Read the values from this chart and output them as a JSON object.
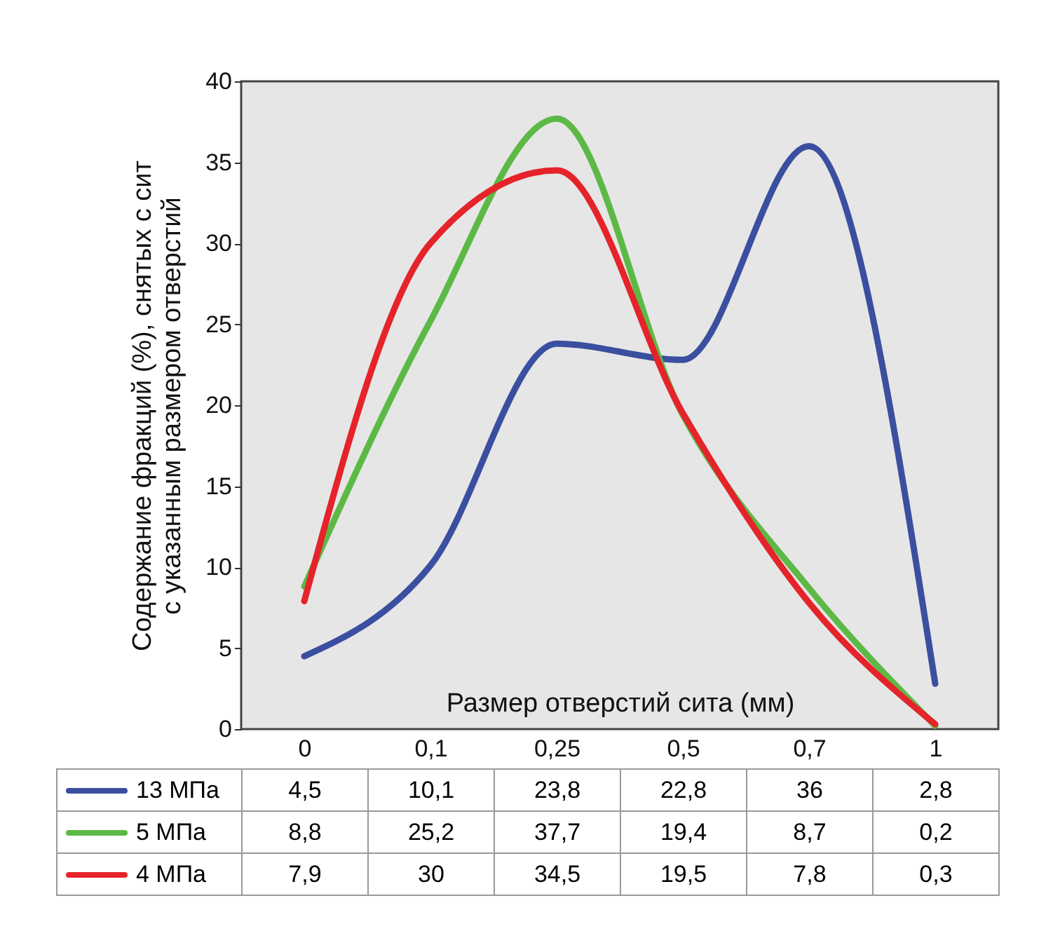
{
  "chart_data": {
    "type": "line",
    "xlabel": "Размер отверстий сита (мм)",
    "ylabel": "Содержание фракций (%), снятых с  сит\nс указанным размером отверстий",
    "categories": [
      "0",
      "0,1",
      "0,25",
      "0,5",
      "0,7",
      "1"
    ],
    "series": [
      {
        "name": "13 МПа",
        "color": "#3a4f9f",
        "values": [
          4.5,
          10.1,
          23.8,
          22.8,
          36,
          2.8
        ],
        "value_labels": [
          "4,5",
          "10,1",
          "23,8",
          "22,8",
          "36",
          "2,8"
        ]
      },
      {
        "name": "5 МПа",
        "color": "#5cb946",
        "values": [
          8.8,
          25.2,
          37.7,
          19.4,
          8.7,
          0.2
        ],
        "value_labels": [
          "8,8",
          "25,2",
          "37,7",
          "19,4",
          "8,7",
          "0,2"
        ]
      },
      {
        "name": "4 МПа",
        "color": "#e5232a",
        "values": [
          7.9,
          30,
          34.5,
          19.5,
          7.8,
          0.3
        ],
        "value_labels": [
          "7,9",
          "30",
          "34,5",
          "19,5",
          "7,8",
          "0,3"
        ]
      }
    ],
    "ylim": [
      0,
      40
    ],
    "yticks": [
      0,
      5,
      10,
      15,
      20,
      25,
      30,
      35,
      40
    ],
    "grid": false,
    "marker": "none",
    "line_style": "solid",
    "legend": "bottom"
  }
}
